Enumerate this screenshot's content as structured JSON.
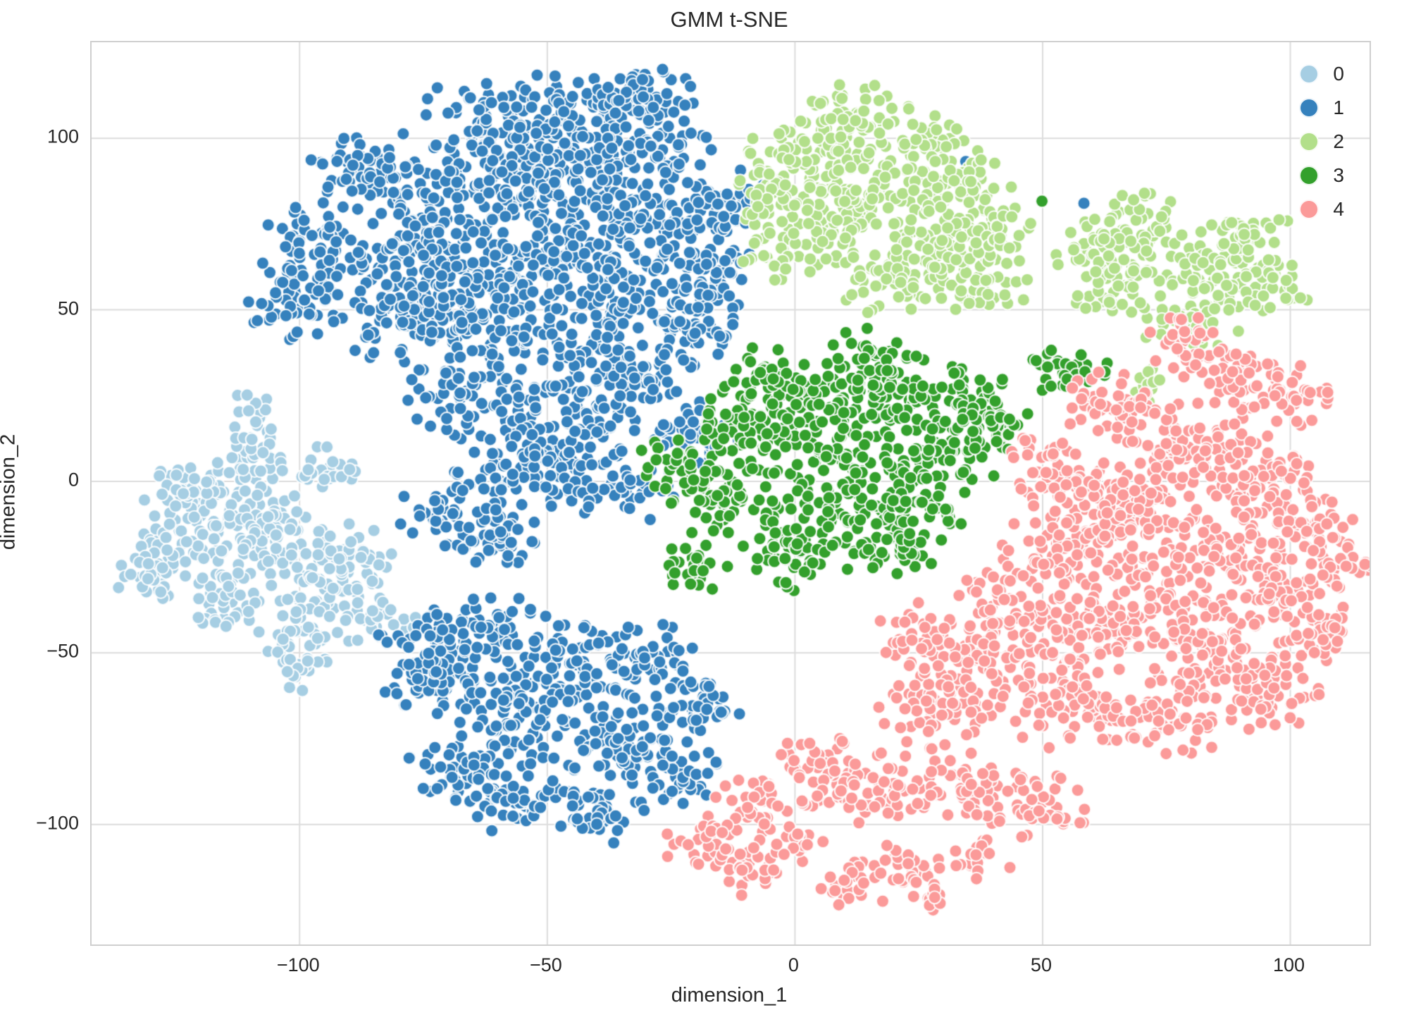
{
  "figure": {
    "title": "GMM t-SNE"
  },
  "chart_data": {
    "type": "scatter",
    "title": "GMM t-SNE",
    "xlabel": "dimension_1",
    "ylabel": "dimension_2",
    "xlim": [
      -142,
      116
    ],
    "ylim": [
      -135,
      128
    ],
    "x_ticks": [
      -100,
      -50,
      0,
      50,
      100
    ],
    "y_ticks": [
      -100,
      -50,
      0,
      50,
      100
    ],
    "grid": true,
    "legend": {
      "position": "upper right",
      "entries": [
        {
          "label": "0",
          "color": "#a6cee3"
        },
        {
          "label": "1",
          "color": "#3581bd"
        },
        {
          "label": "2",
          "color": "#b2df8a"
        },
        {
          "label": "3",
          "color": "#33a02c"
        },
        {
          "label": "4",
          "color": "#fb9a99"
        }
      ]
    },
    "style": {
      "background": "#ffffff",
      "grid_color": "#dcdcdc",
      "border_color": "#cfcfcf",
      "text_color": "#262626",
      "marker_radius_px": 9,
      "marker_edge_color": "#ffffff",
      "marker_edge_width": 2.2
    },
    "seed": 42,
    "blob_format": "[center_x, center_y, radius_data_units, n_points]",
    "clusters": [
      {
        "label": "0",
        "color": "#a6cee3",
        "blobs": [
          [
            -115,
            -5,
            10,
            60
          ],
          [
            -125,
            -20,
            9,
            50
          ],
          [
            -105,
            -15,
            10,
            60
          ],
          [
            -95,
            -30,
            9,
            50
          ],
          [
            -115,
            -35,
            8,
            40
          ],
          [
            -85,
            -40,
            7,
            30
          ],
          [
            -100,
            -45,
            7,
            30
          ],
          [
            -110,
            8,
            7,
            30
          ],
          [
            -95,
            3,
            6,
            25
          ],
          [
            -125,
            -2,
            6,
            25
          ],
          [
            -110,
            22,
            4,
            12
          ],
          [
            -90,
            -22,
            8,
            40
          ],
          [
            -130,
            -28,
            6,
            25
          ],
          [
            -100,
            -55,
            5,
            18
          ]
        ]
      },
      {
        "label": "1",
        "color": "#3581bd",
        "blobs": [
          [
            -60,
            105,
            13,
            90
          ],
          [
            -40,
            108,
            11,
            70
          ],
          [
            -85,
            90,
            11,
            70
          ],
          [
            -65,
            85,
            13,
            90
          ],
          [
            -45,
            85,
            11,
            70
          ],
          [
            -95,
            68,
            11,
            70
          ],
          [
            -75,
            68,
            11,
            70
          ],
          [
            -55,
            62,
            13,
            90
          ],
          [
            -30,
            95,
            11,
            70
          ],
          [
            -25,
            75,
            11,
            70
          ],
          [
            -100,
            52,
            9,
            50
          ],
          [
            -80,
            48,
            11,
            70
          ],
          [
            -60,
            45,
            11,
            70
          ],
          [
            -35,
            52,
            11,
            70
          ],
          [
            -18,
            60,
            9,
            50
          ],
          [
            -15,
            82,
            8,
            40
          ],
          [
            -50,
            95,
            11,
            70
          ],
          [
            -70,
            55,
            10,
            60
          ],
          [
            -40,
            70,
            12,
            80
          ],
          [
            -20,
            45,
            8,
            40
          ],
          [
            -30,
            112,
            8,
            40
          ],
          [
            -65,
            25,
            11,
            70
          ],
          [
            -45,
            18,
            12,
            80
          ],
          [
            -30,
            30,
            9,
            50
          ],
          [
            -55,
            3,
            11,
            70
          ],
          [
            -35,
            -2,
            9,
            50
          ],
          [
            -70,
            -8,
            9,
            50
          ],
          [
            -20,
            15,
            8,
            40
          ],
          [
            -42,
            35,
            8,
            40
          ],
          [
            -60,
            -15,
            8,
            40
          ],
          [
            -62,
            -45,
            11,
            70
          ],
          [
            -45,
            -55,
            11,
            70
          ],
          [
            -72,
            -60,
            9,
            50
          ],
          [
            -30,
            -52,
            9,
            50
          ],
          [
            -55,
            -70,
            11,
            70
          ],
          [
            -35,
            -75,
            11,
            70
          ],
          [
            -68,
            -85,
            9,
            50
          ],
          [
            -55,
            -93,
            9,
            50
          ],
          [
            -40,
            -97,
            8,
            40
          ],
          [
            -25,
            -85,
            8,
            40
          ],
          [
            -75,
            -48,
            8,
            40
          ],
          [
            -20,
            -65,
            8,
            40
          ],
          [
            35,
            93,
            0.5,
            1
          ],
          [
            58,
            81,
            0.5,
            1
          ]
        ]
      },
      {
        "label": "2",
        "color": "#b2df8a",
        "blobs": [
          [
            5,
            95,
            12,
            80
          ],
          [
            25,
            98,
            10,
            60
          ],
          [
            15,
            80,
            12,
            80
          ],
          [
            35,
            82,
            10,
            60
          ],
          [
            0,
            70,
            10,
            60
          ],
          [
            20,
            60,
            10,
            60
          ],
          [
            38,
            58,
            8,
            40
          ],
          [
            -5,
            85,
            8,
            40
          ],
          [
            10,
            108,
            8,
            40
          ],
          [
            30,
            70,
            9,
            50
          ],
          [
            42,
            72,
            7,
            30
          ],
          [
            70,
            72,
            10,
            60
          ],
          [
            85,
            62,
            10,
            60
          ],
          [
            95,
            55,
            8,
            40
          ],
          [
            65,
            55,
            8,
            40
          ],
          [
            80,
            45,
            8,
            40
          ],
          [
            92,
            72,
            7,
            30
          ],
          [
            72,
            28,
            4,
            12
          ],
          [
            60,
            68,
            7,
            30
          ]
        ]
      },
      {
        "label": "3",
        "color": "#33a02c",
        "blobs": [
          [
            5,
            20,
            12,
            80
          ],
          [
            20,
            25,
            10,
            60
          ],
          [
            -10,
            15,
            10,
            60
          ],
          [
            10,
            0,
            13,
            90
          ],
          [
            30,
            8,
            10,
            60
          ],
          [
            -15,
            -5,
            10,
            60
          ],
          [
            0,
            -20,
            10,
            60
          ],
          [
            20,
            -18,
            8,
            40
          ],
          [
            -20,
            -25,
            6,
            25
          ],
          [
            35,
            25,
            8,
            40
          ],
          [
            -25,
            5,
            6,
            25
          ],
          [
            25,
            -8,
            8,
            40
          ],
          [
            -5,
            30,
            8,
            40
          ],
          [
            40,
            15,
            7,
            30
          ],
          [
            55,
            32,
            7,
            30
          ],
          [
            15,
            35,
            8,
            40
          ],
          [
            50,
            82,
            0.5,
            1
          ]
        ]
      },
      {
        "label": "4",
        "color": "#fb9a99",
        "blobs": [
          [
            80,
            10,
            13,
            90
          ],
          [
            95,
            0,
            11,
            70
          ],
          [
            70,
            -10,
            13,
            90
          ],
          [
            90,
            -20,
            11,
            70
          ],
          [
            55,
            -20,
            11,
            70
          ],
          [
            100,
            -35,
            9,
            50
          ],
          [
            75,
            -35,
            13,
            90
          ],
          [
            60,
            -45,
            11,
            70
          ],
          [
            85,
            -50,
            11,
            70
          ],
          [
            40,
            -50,
            10,
            60
          ],
          [
            30,
            -65,
            11,
            70
          ],
          [
            55,
            -65,
            11,
            70
          ],
          [
            75,
            -68,
            11,
            70
          ],
          [
            95,
            -62,
            9,
            50
          ],
          [
            105,
            -15,
            8,
            40
          ],
          [
            98,
            25,
            8,
            40
          ],
          [
            88,
            32,
            8,
            40
          ],
          [
            45,
            -35,
            10,
            60
          ],
          [
            25,
            -45,
            8,
            40
          ],
          [
            65,
            22,
            9,
            50
          ],
          [
            52,
            5,
            8,
            40
          ],
          [
            60,
            -5,
            10,
            60
          ],
          [
            105,
            -45,
            7,
            30
          ],
          [
            110,
            -25,
            6,
            25
          ],
          [
            78,
            40,
            7,
            30
          ],
          [
            5,
            -85,
            9,
            50
          ],
          [
            18,
            -90,
            9,
            50
          ],
          [
            -8,
            -95,
            8,
            40
          ],
          [
            -18,
            -106,
            7,
            30
          ],
          [
            -8,
            -114,
            6,
            25
          ],
          [
            35,
            -90,
            9,
            50
          ],
          [
            50,
            -95,
            8,
            40
          ],
          [
            12,
            -118,
            6,
            25
          ],
          [
            22,
            -112,
            6,
            25
          ],
          [
            38,
            -110,
            5,
            18
          ],
          [
            0,
            -105,
            5,
            18
          ],
          [
            28,
            -122,
            4,
            12
          ]
        ]
      }
    ]
  }
}
